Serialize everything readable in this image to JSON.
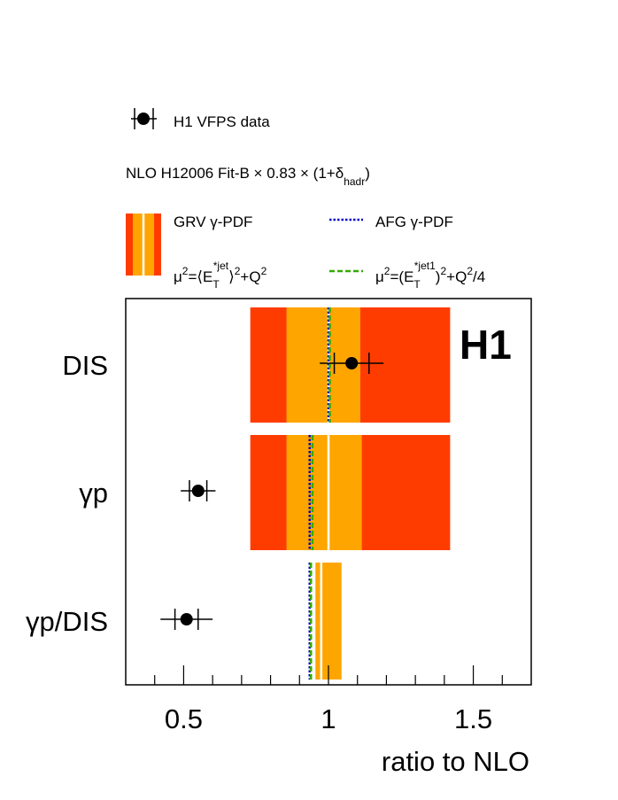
{
  "chart_data": {
    "type": "horizontal-band",
    "experiment_label": "H1",
    "xlabel": "ratio to NLO",
    "xlim": [
      0.3,
      1.7
    ],
    "x_ticks": [
      0.5,
      1,
      1.5
    ],
    "x_tick_labels": [
      "0.5",
      "1",
      "1.5"
    ],
    "categories": [
      "DIS",
      "γp",
      "γp/DIS"
    ],
    "data": [
      {
        "category": "DIS",
        "value": 1.08,
        "stat_err": 0.06,
        "tot_err": 0.11
      },
      {
        "category": "γp",
        "value": 0.55,
        "stat_err": 0.03,
        "tot_err": 0.06
      },
      {
        "category": "γp/DIS",
        "value": 0.51,
        "stat_err": 0.04,
        "tot_err": 0.09
      }
    ],
    "nlo_bands": [
      {
        "category": "DIS",
        "center": 1.0,
        "inner": [
          0.855,
          1.11
        ],
        "outer": [
          0.73,
          1.42
        ],
        "afg": 1.0,
        "alt_scale": 1.0
      },
      {
        "category": "γp",
        "center": 1.0,
        "inner": [
          0.855,
          1.115
        ],
        "outer": [
          0.73,
          1.42
        ],
        "afg": 0.935,
        "alt_scale": 0.94
      },
      {
        "category": "γp/DIS",
        "center": 0.975,
        "inner": [
          0.955,
          1.045
        ],
        "outer": null,
        "afg": 0.935,
        "alt_scale": 0.935
      }
    ],
    "colors": {
      "outer_band": "#ff3c00",
      "inner_band": "#ffa500",
      "center_line": "#ffffff",
      "afg_line": "#0000cc",
      "alt_scale_line": "#33aa00",
      "data_marker": "#000000"
    },
    "legend": {
      "data_label": "H1 VFPS data",
      "nlo_label_main": "NLO H12006 Fit-B × 0.83 × (1+δ",
      "nlo_label_sub": "hadr",
      "nlo_label_end": ")",
      "grv_label": "GRV γ-PDF",
      "afg_label": "AFG γ-PDF",
      "scale1": {
        "pre": "μ",
        "sup1": "2",
        "mid": "=⟨E",
        "sub": "T",
        "sup2": "*jet",
        "post": "⟩",
        "sup3": "2",
        "end": "+Q",
        "sup4": "2"
      },
      "scale2": {
        "pre": "μ",
        "sup1": "2",
        "mid": "=(E",
        "sub": "T",
        "sup2": "*jet1",
        "post": ")",
        "sup3": "2",
        "end": "+Q",
        "sup4": "2",
        "tail": "/4"
      }
    }
  }
}
